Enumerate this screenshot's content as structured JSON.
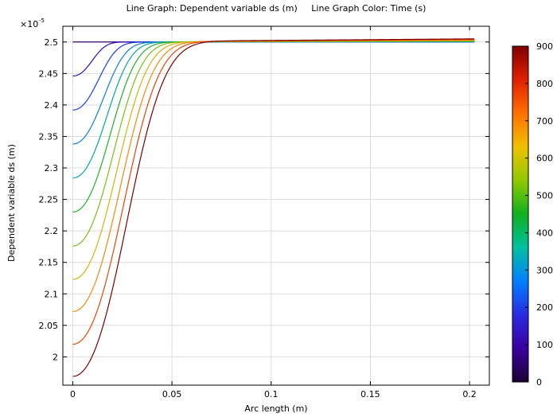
{
  "chart_data": {
    "type": "line",
    "title": "Line Graph: Dependent variable ds (m)     Line Graph Color: Time (s)",
    "xlabel": "Arc length (m)",
    "ylabel": "Dependent variable ds (m)",
    "y_multiplier_label": "×10",
    "y_multiplier_exponent": "-5",
    "xlim": [
      -0.005,
      0.21
    ],
    "ylim": [
      1.955,
      2.525
    ],
    "x_ticks": [
      0,
      0.05,
      0.1,
      0.15,
      0.2
    ],
    "x_tick_labels": [
      "0",
      "0.05",
      "0.1",
      "0.15",
      "0.2"
    ],
    "y_ticks": [
      2.0,
      2.05,
      2.1,
      2.15,
      2.2,
      2.25,
      2.3,
      2.35,
      2.4,
      2.45,
      2.5
    ],
    "y_tick_labels": [
      "2",
      "2.05",
      "2.1",
      "2.15",
      "2.2",
      "2.25",
      "2.3",
      "2.35",
      "2.4",
      "2.45",
      "2.5"
    ],
    "grid": true,
    "series": [
      {
        "time": 0,
        "color": "#30006b",
        "start": 2.5,
        "x_half": 0.0,
        "end": 2.5
      },
      {
        "time": 90,
        "color": "#2a0fb4",
        "start": 2.446,
        "x_half": 0.012,
        "end": 2.5
      },
      {
        "time": 180,
        "color": "#1b3fe6",
        "start": 2.392,
        "x_half": 0.016,
        "end": 2.5
      },
      {
        "time": 270,
        "color": "#0a7fd8",
        "start": 2.338,
        "x_half": 0.019,
        "end": 2.5
      },
      {
        "time": 360,
        "color": "#00aa99",
        "start": 2.284,
        "x_half": 0.021,
        "end": 2.501
      },
      {
        "time": 450,
        "color": "#1eb02a",
        "start": 2.23,
        "x_half": 0.023,
        "end": 2.501
      },
      {
        "time": 540,
        "color": "#7cbd12",
        "start": 2.176,
        "x_half": 0.025,
        "end": 2.502
      },
      {
        "time": 630,
        "color": "#d3b20c",
        "start": 2.123,
        "x_half": 0.027,
        "end": 2.502
      },
      {
        "time": 720,
        "color": "#f08a0a",
        "start": 2.072,
        "x_half": 0.029,
        "end": 2.503
      },
      {
        "time": 810,
        "color": "#e24608",
        "start": 2.02,
        "x_half": 0.031,
        "end": 2.504
      },
      {
        "time": 900,
        "color": "#7a0000",
        "start": 1.969,
        "x_half": 0.033,
        "end": 2.505
      }
    ],
    "colorbar": {
      "label": "Time (s)",
      "range": [
        0,
        900
      ],
      "ticks": [
        0,
        100,
        200,
        300,
        400,
        500,
        600,
        700,
        800,
        900
      ],
      "tick_labels": [
        "0",
        "100",
        "200",
        "300",
        "400",
        "500",
        "600",
        "700",
        "800",
        "900"
      ],
      "colors": [
        "#1a0033",
        "#3a00a0",
        "#2a2ae0",
        "#0080ff",
        "#00c0a0",
        "#10b020",
        "#90c800",
        "#f0c000",
        "#ff7000",
        "#e02000",
        "#800000"
      ]
    }
  }
}
